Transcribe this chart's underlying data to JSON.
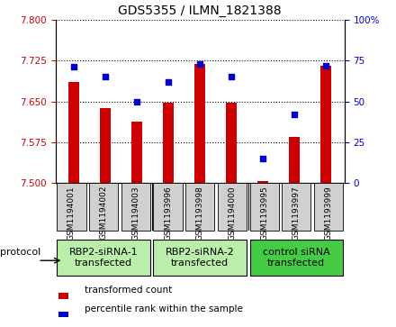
{
  "title": "GDS5355 / ILMN_1821388",
  "samples": [
    "GSM1194001",
    "GSM1194002",
    "GSM1194003",
    "GSM1193996",
    "GSM1193998",
    "GSM1194000",
    "GSM1193995",
    "GSM1193997",
    "GSM1193999"
  ],
  "bar_values": [
    7.685,
    7.638,
    7.613,
    7.647,
    7.718,
    7.647,
    7.503,
    7.585,
    7.715
  ],
  "dot_values": [
    71,
    65,
    50,
    62,
    73,
    65,
    15,
    42,
    72
  ],
  "ylim_left": [
    7.5,
    7.8
  ],
  "ylim_right": [
    0,
    100
  ],
  "yticks_left": [
    7.5,
    7.575,
    7.65,
    7.725,
    7.8
  ],
  "yticks_right": [
    0,
    25,
    50,
    75,
    100
  ],
  "bar_color": "#cc0000",
  "dot_color": "#0000cc",
  "bar_width": 0.35,
  "groups": [
    {
      "label": "RBP2-siRNA-1\ntransfected",
      "indices": [
        0,
        1,
        2
      ],
      "color": "#bbeeaa"
    },
    {
      "label": "RBP2-siRNA-2\ntransfected",
      "indices": [
        3,
        4,
        5
      ],
      "color": "#bbeeaa"
    },
    {
      "label": "control siRNA\ntransfected",
      "indices": [
        6,
        7,
        8
      ],
      "color": "#44cc44"
    }
  ],
  "sample_box_color": "#d0d0d0",
  "protocol_label": "protocol",
  "legend_bar_label": "transformed count",
  "legend_dot_label": "percentile rank within the sample",
  "tick_label_color_left": "#cc0000",
  "tick_label_color_right": "#0000cc",
  "plot_bg": "#ffffff",
  "grid_color": "#000000",
  "title_fontsize": 10,
  "tick_fontsize": 7.5,
  "sample_fontsize": 6.5,
  "group_fontsize": 8,
  "legend_fontsize": 7.5
}
